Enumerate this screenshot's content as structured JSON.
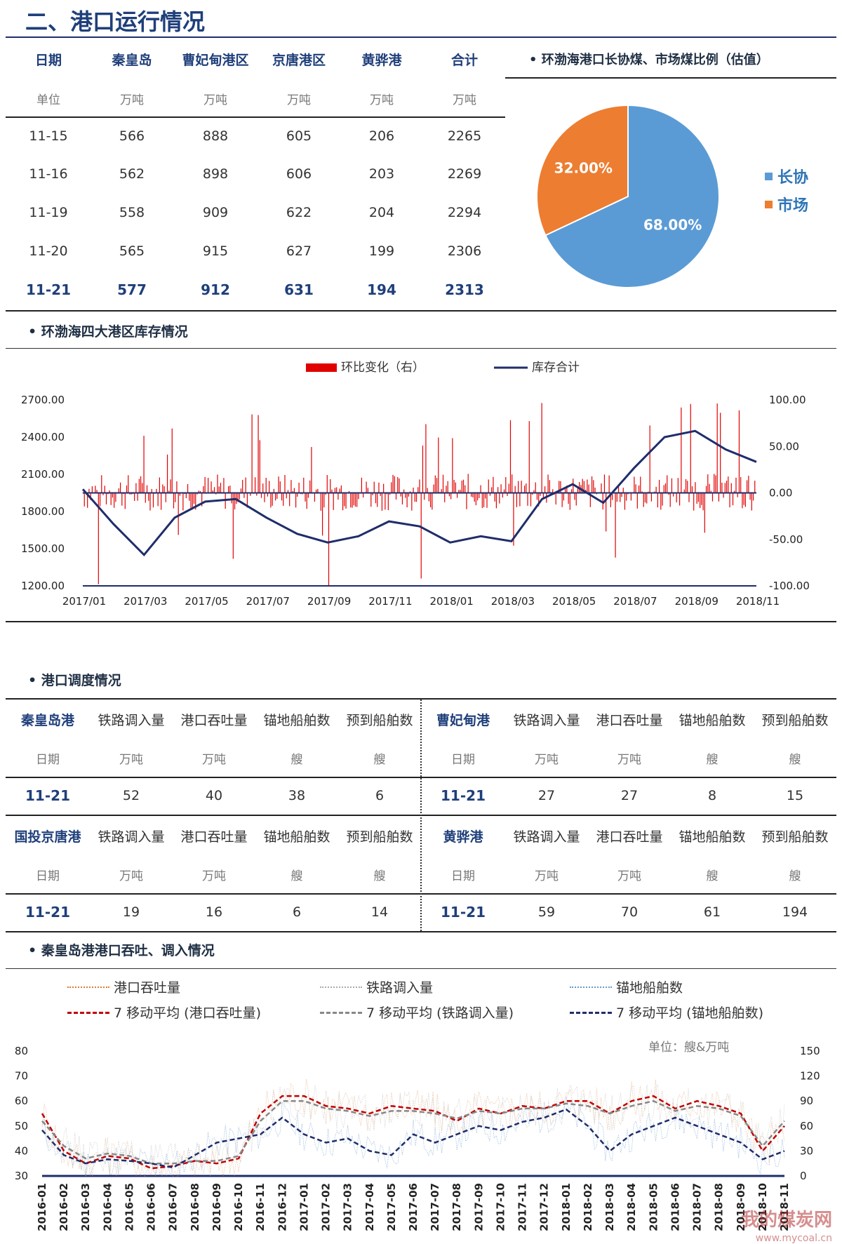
{
  "page_title": "二、港口运行情况",
  "port_table": {
    "headers": [
      "日期",
      "秦皇岛",
      "曹妃甸港区",
      "京唐港区",
      "黄骅港",
      "合计"
    ],
    "units": [
      "单位",
      "万吨",
      "万吨",
      "万吨",
      "万吨",
      "万吨"
    ],
    "rows": [
      [
        "11-15",
        "566",
        "888",
        "605",
        "206",
        "2265"
      ],
      [
        "11-16",
        "562",
        "898",
        "606",
        "203",
        "2269"
      ],
      [
        "11-19",
        "558",
        "909",
        "622",
        "204",
        "2294"
      ],
      [
        "11-20",
        "565",
        "915",
        "627",
        "199",
        "2306"
      ],
      [
        "11-21",
        "577",
        "912",
        "631",
        "194",
        "2313"
      ]
    ]
  },
  "pie_section": {
    "title": "• 环渤海港口长协煤、市场煤比例（估值）",
    "chart_data": {
      "type": "pie",
      "labels": [
        "长协",
        "市场"
      ],
      "values": [
        68.0,
        32.0
      ],
      "value_labels": [
        "68.00%",
        "32.00%"
      ],
      "colors": [
        "#5b9bd5",
        "#ed7d31"
      ],
      "legend_position": "right"
    }
  },
  "inventory_section": {
    "title": "• 环渤海四大港区库存情况",
    "chart_data": {
      "type": "line",
      "series": [
        {
          "name": "环比变化（右）",
          "kind": "bar",
          "axis": "right",
          "color": "#e00000"
        },
        {
          "name": "库存合计",
          "kind": "line",
          "axis": "left",
          "color": "#1f2d6b",
          "x": [
            "2017/01",
            "2017/02",
            "2017/03",
            "2017/04",
            "2017/05",
            "2017/06",
            "2017/07",
            "2017/08",
            "2017/09",
            "2017/10",
            "2017/11",
            "2017/12",
            "2018/01",
            "2018/02",
            "2018/03",
            "2018/04",
            "2018/05",
            "2018/06",
            "2018/07",
            "2018/08",
            "2018/09",
            "2018/10",
            "2018/11"
          ],
          "values": [
            1980,
            1700,
            1450,
            1750,
            1880,
            1900,
            1750,
            1620,
            1550,
            1600,
            1720,
            1680,
            1550,
            1600,
            1560,
            1900,
            2020,
            1870,
            2150,
            2400,
            2450,
            2300,
            2200
          ]
        }
      ],
      "x_tick_labels": [
        "2017/01",
        "2017/03",
        "2017/05",
        "2017/07",
        "2017/09",
        "2017/11",
        "2018/01",
        "2018/03",
        "2018/05",
        "2018/07",
        "2018/09",
        "2018/11"
      ],
      "y_left_ticks": [
        "2700.00",
        "2400.00",
        "2100.00",
        "1800.00",
        "1500.00",
        "1200.00"
      ],
      "y_right_ticks": [
        "100.00",
        "50.00",
        "0.00",
        "-50.00",
        "-100.00"
      ],
      "ylim_left": [
        1200,
        2700
      ],
      "ylim_right": [
        -100,
        100
      ],
      "legend_position": "top"
    }
  },
  "dispatch_section": {
    "title": "• 港口调度情况",
    "blocks": [
      {
        "port": "秦皇岛港",
        "headers": [
          "铁路调入量",
          "港口吞吐量",
          "锚地船舶数",
          "预到船舶数"
        ],
        "units": [
          "日期",
          "万吨",
          "万吨",
          "艘",
          "艘"
        ],
        "row": [
          "11-21",
          "52",
          "40",
          "38",
          "6"
        ]
      },
      {
        "port": "曹妃甸港",
        "headers": [
          "铁路调入量",
          "港口吞吐量",
          "锚地船舶数",
          "预到船舶数"
        ],
        "units": [
          "日期",
          "万吨",
          "万吨",
          "艘",
          "艘"
        ],
        "row": [
          "11-21",
          "27",
          "27",
          "8",
          "15"
        ]
      },
      {
        "port": "国投京唐港",
        "headers": [
          "铁路调入量",
          "港口吞吐量",
          "锚地船舶数",
          "预到船舶数"
        ],
        "units": [
          "日期",
          "万吨",
          "万吨",
          "艘",
          "艘"
        ],
        "row": [
          "11-21",
          "19",
          "16",
          "6",
          "14"
        ]
      },
      {
        "port": "黄骅港",
        "headers": [
          "铁路调入量",
          "港口吞吐量",
          "锚地船舶数",
          "预到船舶数"
        ],
        "units": [
          "日期",
          "万吨",
          "万吨",
          "艘",
          "艘"
        ],
        "row": [
          "11-21",
          "59",
          "70",
          "61",
          "194"
        ]
      }
    ]
  },
  "qhd_section": {
    "title": "• 秦皇岛港港口吞吐、调入情况",
    "unit_note": "单位：艘&万吨",
    "chart_data": {
      "type": "line",
      "legend": [
        {
          "name": "港口吞吐量",
          "style": "dotted",
          "color": "#e07830"
        },
        {
          "name": "铁路调入量",
          "style": "dotted",
          "color": "#aaaaaa"
        },
        {
          "name": "锚地船舶数",
          "style": "dotted",
          "color": "#6699cc"
        },
        {
          "name": "7 移动平均 (港口吞吐量)",
          "style": "dashed",
          "color": "#c00000"
        },
        {
          "name": "7 移动平均 (铁路调入量)",
          "style": "dashed",
          "color": "#888888"
        },
        {
          "name": "7 移动平均 (锚地船舶数)",
          "style": "dashed",
          "color": "#1f2d6b"
        }
      ],
      "x": [
        "2016-01",
        "2016-02",
        "2016-03",
        "2016-04",
        "2016-05",
        "2016-06",
        "2016-07",
        "2016-08",
        "2016-09",
        "2016-10",
        "2016-11",
        "2016-12",
        "2017-01",
        "2017-02",
        "2017-03",
        "2017-04",
        "2017-05",
        "2017-06",
        "2017-07",
        "2017-08",
        "2017-09",
        "2017-10",
        "2017-11",
        "2017-12",
        "2018-01",
        "2018-02",
        "2018-03",
        "2018-04",
        "2018-05",
        "2018-06",
        "2018-07",
        "2018-08",
        "2018-09",
        "2018-10",
        "2018-11"
      ],
      "series": [
        {
          "name": "7 移动平均 (港口吞吐量)",
          "axis": "left",
          "values": [
            55,
            40,
            35,
            38,
            37,
            33,
            34,
            36,
            35,
            37,
            55,
            62,
            62,
            58,
            57,
            55,
            58,
            57,
            56,
            52,
            57,
            55,
            58,
            57,
            60,
            60,
            55,
            60,
            62,
            57,
            60,
            58,
            55,
            40,
            50
          ]
        },
        {
          "name": "7 移动平均 (铁路调入量)",
          "axis": "left",
          "values": [
            52,
            42,
            37,
            39,
            38,
            35,
            35,
            36,
            36,
            38,
            52,
            60,
            60,
            57,
            56,
            54,
            56,
            56,
            55,
            53,
            56,
            55,
            57,
            57,
            59,
            58,
            55,
            58,
            60,
            56,
            58,
            57,
            54,
            42,
            52
          ]
        },
        {
          "name": "7 移动平均 (锚地船舶数)",
          "axis": "right",
          "values": [
            55,
            25,
            15,
            20,
            18,
            15,
            10,
            25,
            40,
            45,
            50,
            70,
            50,
            40,
            45,
            30,
            25,
            50,
            40,
            50,
            60,
            55,
            65,
            70,
            80,
            60,
            30,
            50,
            60,
            70,
            60,
            50,
            40,
            20,
            30
          ]
        }
      ],
      "y_left_ticks": [
        "80",
        "70",
        "60",
        "50",
        "40",
        "30"
      ],
      "y_right_ticks": [
        "150",
        "120",
        "90",
        "60",
        "30",
        "0"
      ],
      "ylim_left": [
        30,
        80
      ],
      "ylim_right": [
        0,
        150
      ]
    }
  },
  "watermark": {
    "text": "我的煤炭网",
    "url": "www.mycoal.cn"
  }
}
